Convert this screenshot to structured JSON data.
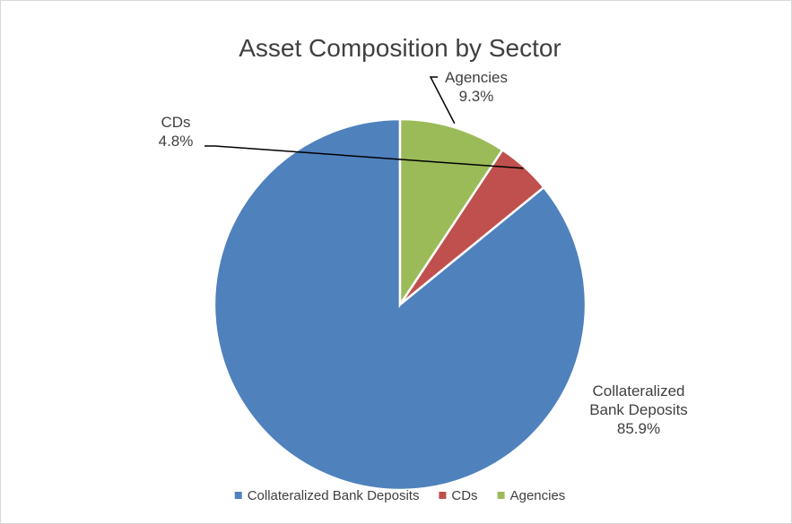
{
  "chart_data": {
    "type": "pie",
    "title": "Asset Composition by Sector",
    "slices": [
      {
        "label": "Collateralized Bank Deposits",
        "value": 85.9,
        "display": "85.9%",
        "label_lines": [
          "Collateralized",
          "Bank Deposits"
        ],
        "color": "#4f81bd"
      },
      {
        "label": "CDs",
        "value": 4.8,
        "display": "4.8%",
        "label_lines": [
          "CDs"
        ],
        "color": "#c0504d"
      },
      {
        "label": "Agencies",
        "value": 9.3,
        "display": "9.3%",
        "label_lines": [
          "Agencies"
        ],
        "color": "#9bbb59"
      }
    ],
    "legend": {
      "placement": "bottom",
      "entries": [
        "Collateralized Bank Deposits",
        "CDs",
        "Agencies"
      ]
    },
    "start_angle_deg": 0,
    "direction": "counterclockwise"
  }
}
